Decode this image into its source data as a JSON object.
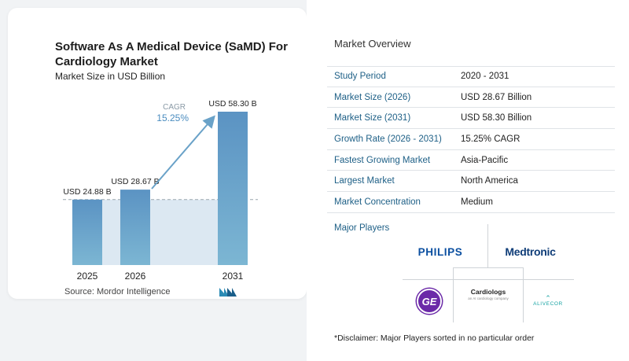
{
  "chart_data": {
    "type": "bar",
    "title": "Software As A Medical Device (SaMD) For Cardiology Market",
    "subtitle": "Market Size in USD Billion",
    "categories": [
      "2025",
      "2026",
      "2031"
    ],
    "values": [
      24.88,
      28.67,
      58.3
    ],
    "data_labels": [
      "USD 24.88 B",
      "USD 28.67 B",
      "USD 58.30 B"
    ],
    "cagr_label": "CAGR",
    "cagr_value": "15.25%",
    "ylim": [
      0,
      60
    ],
    "grid": false,
    "colors": {
      "bar_top": "#5b93c3",
      "bar_bottom": "#7cb6d3",
      "arrow": "#6aa2c8",
      "band": "#dce8f2",
      "ref_line": "#9aa5ae"
    }
  },
  "source": "Source:  Mordor Intelligence",
  "overview": {
    "title": "Market Overview",
    "rows": [
      {
        "label": "Study Period",
        "value": "2020 - 2031"
      },
      {
        "label": "Market Size (2026)",
        "value": "USD 28.67 Billion"
      },
      {
        "label": "Market Size (2031)",
        "value": "USD 58.30 Billion"
      },
      {
        "label": "Growth Rate (2026 - 2031)",
        "value": "15.25% CAGR"
      },
      {
        "label": "Fastest Growing Market",
        "value": "Asia-Pacific"
      },
      {
        "label": "Largest Market",
        "value": "North America"
      },
      {
        "label": "Market Concentration",
        "value": "Medium"
      }
    ],
    "players_title": "Major Players",
    "players": {
      "philips": "PHILIPS",
      "medtronic": "Medtronic",
      "ge": "GE",
      "cardiologs": "Cardiologs",
      "cardiologs_tagline": "an AI cardiology company",
      "alivecor": "ALIVECOR"
    },
    "disclaimer": "*Disclaimer: Major Players sorted in no particular order"
  }
}
